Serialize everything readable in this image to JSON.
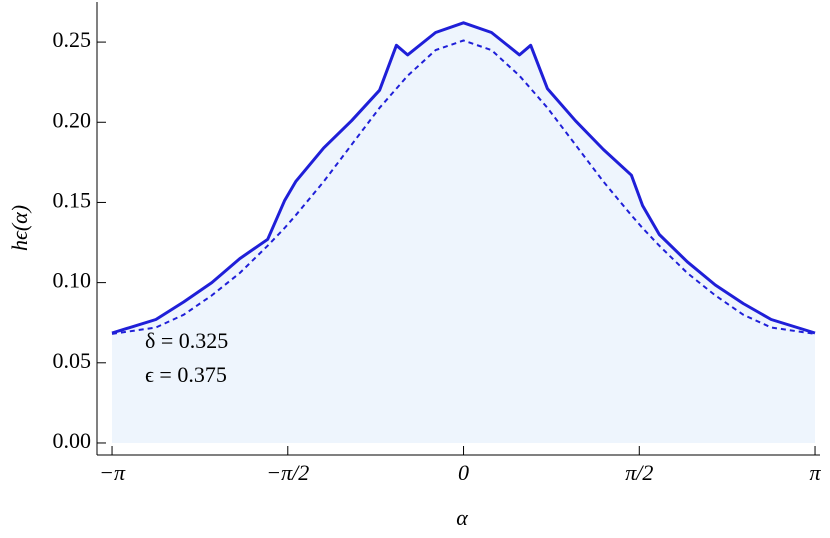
{
  "chart_data": {
    "type": "line",
    "x_label": "α",
    "y_label": "hϵ(α)",
    "annotations": [
      "δ = 0.325",
      "ϵ = 0.375"
    ],
    "x": [
      -3.1416,
      -2.75,
      -2.5,
      -2.25,
      -2,
      -1.75,
      -1.6,
      -1.5,
      -1.25,
      -1,
      -0.75,
      -0.6,
      -0.5,
      -0.25,
      0,
      0.25,
      0.5,
      0.6,
      0.75,
      1,
      1.25,
      1.5,
      1.6,
      1.75,
      2,
      2.25,
      2.5,
      2.75,
      3.1416
    ],
    "series": [
      {
        "color": "#1f1fd8",
        "dash": false,
        "fill": "#eef5fd",
        "values": [
          0.0686,
          0.077,
          0.088,
          0.1,
          0.115,
          0.127,
          0.151,
          0.163,
          0.184,
          0.201,
          0.22,
          0.248,
          0.242,
          0.256,
          0.262,
          0.256,
          0.242,
          0.248,
          0.221,
          0.201,
          0.183,
          0.167,
          0.148,
          0.13,
          0.113,
          0.0985,
          0.087,
          0.077,
          0.0686
        ]
      },
      {
        "color": "#1f1fd8",
        "dash": true,
        "values": [
          0.068,
          0.072,
          0.08,
          0.092,
          0.106,
          0.123,
          0.134,
          0.142,
          0.163,
          0.186,
          0.209,
          0.221,
          0.229,
          0.245,
          0.251,
          0.245,
          0.229,
          0.221,
          0.209,
          0.186,
          0.163,
          0.142,
          0.134,
          0.123,
          0.106,
          0.092,
          0.08,
          0.072,
          0.068
        ]
      }
    ],
    "xlim": [
      -3.276,
      3.186
    ],
    "ylim": [
      -0.0075,
      0.275
    ],
    "xticks": [
      {
        "value": -3.1416,
        "label": "−π"
      },
      {
        "value": -1.5708,
        "label": "−π/2"
      },
      0,
      {
        "value": 1.5708,
        "label": "π/2"
      },
      {
        "value": 3.1416,
        "label": "π"
      }
    ],
    "yticks": [
      {
        "value": 0,
        "label": "0.00"
      },
      0.05,
      {
        "value": 0.1,
        "label": "0.10"
      },
      0.15,
      {
        "value": 0.2,
        "label": "0.20"
      },
      0.25
    ]
  }
}
